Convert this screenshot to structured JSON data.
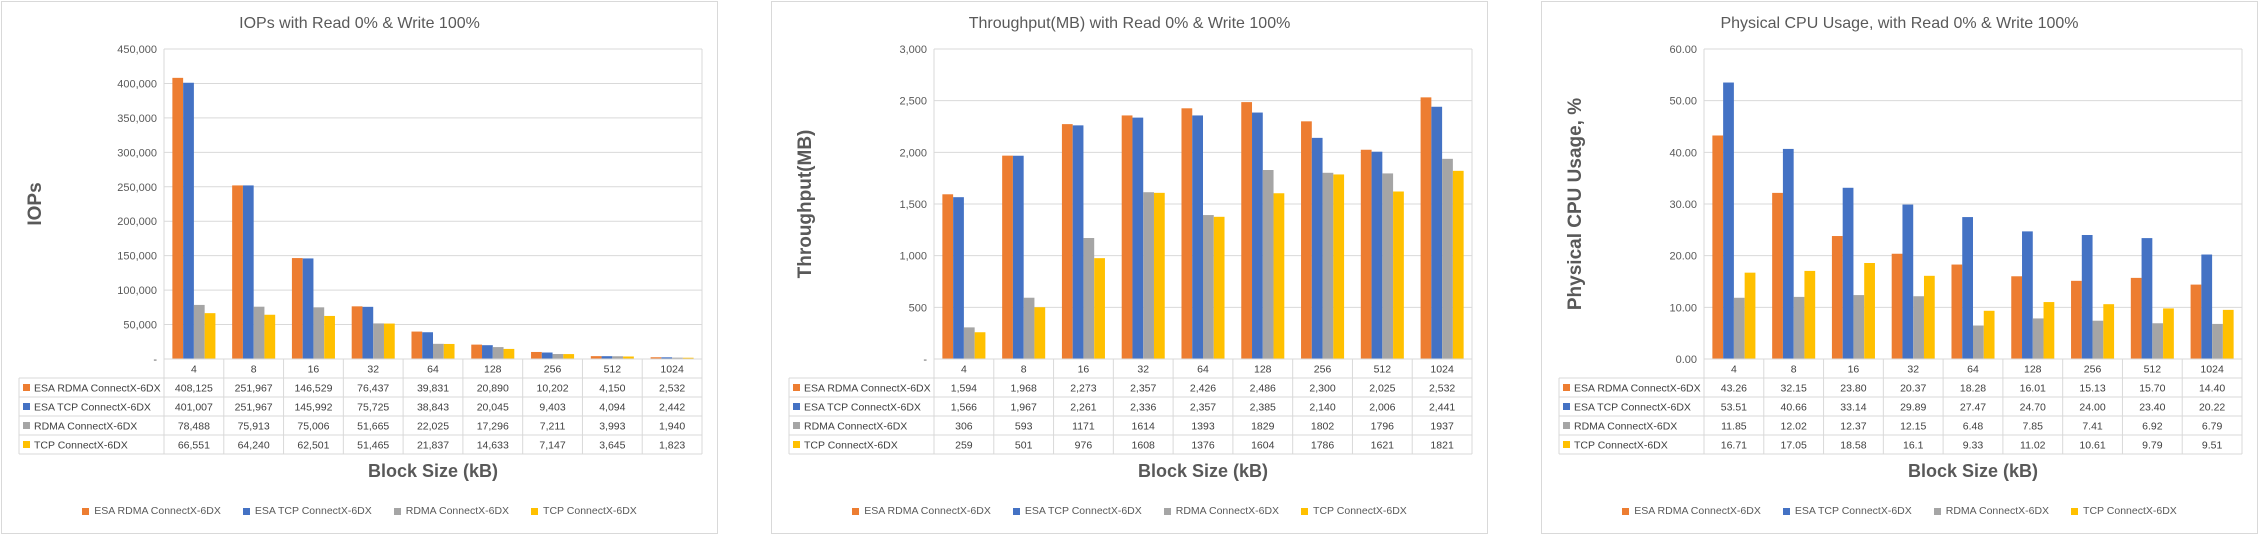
{
  "chart_data": [
    {
      "type": "bar",
      "title": "IOPs with Read 0% & Write 100%",
      "xlabel": "Block Size (kB)",
      "ylabel": "IOPs",
      "ylim": [
        0,
        450000
      ],
      "yticks": [
        "-",
        "50,000",
        "100,000",
        "150,000",
        "200,000",
        "250,000",
        "300,000",
        "350,000",
        "400,000",
        "450,000"
      ],
      "grid": true,
      "legend": "bottom",
      "data_table": true,
      "categories": [
        "4",
        "8",
        "16",
        "32",
        "64",
        "128",
        "256",
        "512",
        "1024"
      ],
      "series": [
        {
          "name": "ESA RDMA ConnectX-6DX",
          "color": "#ED7D31",
          "values": [
            408125,
            251967,
            146529,
            76437,
            39831,
            20890,
            10202,
            4150,
            2532
          ],
          "table_values": [
            "408,125",
            "251,967",
            "146,529",
            "76,437",
            "39,831",
            "20,890",
            "10,202",
            "4,150",
            "2,532"
          ]
        },
        {
          "name": "ESA TCP ConnectX-6DX",
          "color": "#4472C4",
          "values": [
            401007,
            251967,
            145992,
            75725,
            38843,
            20045,
            9403,
            4094,
            2442
          ],
          "table_values": [
            "401,007",
            "251,967",
            "145,992",
            "75,725",
            "38,843",
            "20,045",
            "9,403",
            "4,094",
            "2,442"
          ]
        },
        {
          "name": "RDMA ConnectX-6DX",
          "color": "#A5A5A5",
          "values": [
            78488,
            75913,
            75006,
            51665,
            22025,
            17296,
            7211,
            3993,
            1940
          ],
          "table_values": [
            "78,488",
            "75,913",
            "75,006",
            "51,665",
            "22,025",
            "17,296",
            "7,211",
            "3,993",
            "1,940"
          ]
        },
        {
          "name": "TCP ConnectX-6DX",
          "color": "#FFC000",
          "values": [
            66551,
            64240,
            62501,
            51465,
            21837,
            14633,
            7147,
            3645,
            1823
          ],
          "table_values": [
            "66,551",
            "64,240",
            "62,501",
            "51,465",
            "21,837",
            "14,633",
            "7,147",
            "3,645",
            "1,823"
          ]
        }
      ]
    },
    {
      "type": "bar",
      "title": "Throughput(MB) with Read 0% & Write 100%",
      "xlabel": "Block Size (kB)",
      "ylabel": "Throughput(MB)",
      "ylim": [
        0,
        3000
      ],
      "yticks": [
        "-",
        "500",
        "1,000",
        "1,500",
        "2,000",
        "2,500",
        "3,000"
      ],
      "grid": true,
      "legend": "bottom",
      "data_table": true,
      "categories": [
        "4",
        "8",
        "16",
        "32",
        "64",
        "128",
        "256",
        "512",
        "1024"
      ],
      "series": [
        {
          "name": "ESA RDMA ConnectX-6DX",
          "color": "#ED7D31",
          "values": [
            1594,
            1968,
            2273,
            2357,
            2426,
            2486,
            2300,
            2025,
            2532
          ],
          "table_values": [
            "1,594",
            "1,968",
            "2,273",
            "2,357",
            "2,426",
            "2,486",
            "2,300",
            "2,025",
            "2,532"
          ]
        },
        {
          "name": "ESA TCP ConnectX-6DX",
          "color": "#4472C4",
          "values": [
            1566,
            1967,
            2261,
            2336,
            2357,
            2385,
            2140,
            2006,
            2441
          ],
          "table_values": [
            "1,566",
            "1,967",
            "2,261",
            "2,336",
            "2,357",
            "2,385",
            "2,140",
            "2,006",
            "2,441"
          ]
        },
        {
          "name": "RDMA ConnectX-6DX",
          "color": "#A5A5A5",
          "values": [
            306,
            593,
            1171,
            1614,
            1393,
            1829,
            1802,
            1796,
            1937
          ],
          "table_values": [
            "306",
            "593",
            "1171",
            "1614",
            "1393",
            "1829",
            "1802",
            "1796",
            "1937"
          ]
        },
        {
          "name": "TCP ConnectX-6DX",
          "color": "#FFC000",
          "values": [
            259,
            501,
            976,
            1608,
            1376,
            1604,
            1786,
            1621,
            1821
          ],
          "table_values": [
            "259",
            "501",
            "976",
            "1608",
            "1376",
            "1604",
            "1786",
            "1621",
            "1821"
          ]
        }
      ]
    },
    {
      "type": "bar",
      "title": "Physical CPU Usage, with Read 0% & Write 100%",
      "xlabel": "Block Size (kB)",
      "ylabel": "Physical CPU Usage, %",
      "ylim": [
        0,
        60
      ],
      "yticks": [
        "0.00",
        "10.00",
        "20.00",
        "30.00",
        "40.00",
        "50.00",
        "60.00"
      ],
      "grid": true,
      "legend": "bottom",
      "data_table": true,
      "categories": [
        "4",
        "8",
        "16",
        "32",
        "64",
        "128",
        "256",
        "512",
        "1024"
      ],
      "series": [
        {
          "name": "ESA RDMA ConnectX-6DX",
          "color": "#ED7D31",
          "values": [
            43.26,
            32.15,
            23.8,
            20.37,
            18.28,
            16.01,
            15.13,
            15.7,
            14.4
          ],
          "table_values": [
            "43.26",
            "32.15",
            "23.80",
            "20.37",
            "18.28",
            "16.01",
            "15.13",
            "15.70",
            "14.40"
          ]
        },
        {
          "name": "ESA TCP ConnectX-6DX",
          "color": "#4472C4",
          "values": [
            53.51,
            40.66,
            33.14,
            29.89,
            27.47,
            24.7,
            24.0,
            23.4,
            20.22
          ],
          "table_values": [
            "53.51",
            "40.66",
            "33.14",
            "29.89",
            "27.47",
            "24.70",
            "24.00",
            "23.40",
            "20.22"
          ]
        },
        {
          "name": "RDMA ConnectX-6DX",
          "color": "#A5A5A5",
          "values": [
            11.85,
            12.02,
            12.37,
            12.15,
            6.48,
            7.85,
            7.41,
            6.92,
            6.79
          ],
          "table_values": [
            "11.85",
            "12.02",
            "12.37",
            "12.15",
            "6.48",
            "7.85",
            "7.41",
            "6.92",
            "6.79"
          ]
        },
        {
          "name": "TCP ConnectX-6DX",
          "color": "#FFC000",
          "values": [
            16.71,
            17.05,
            18.58,
            16.1,
            9.33,
            11.02,
            10.61,
            9.79,
            9.51
          ],
          "table_values": [
            "16.71",
            "17.05",
            "18.58",
            "16.1",
            "9.33",
            "11.02",
            "10.61",
            "9.79",
            "9.51"
          ]
        }
      ]
    }
  ]
}
